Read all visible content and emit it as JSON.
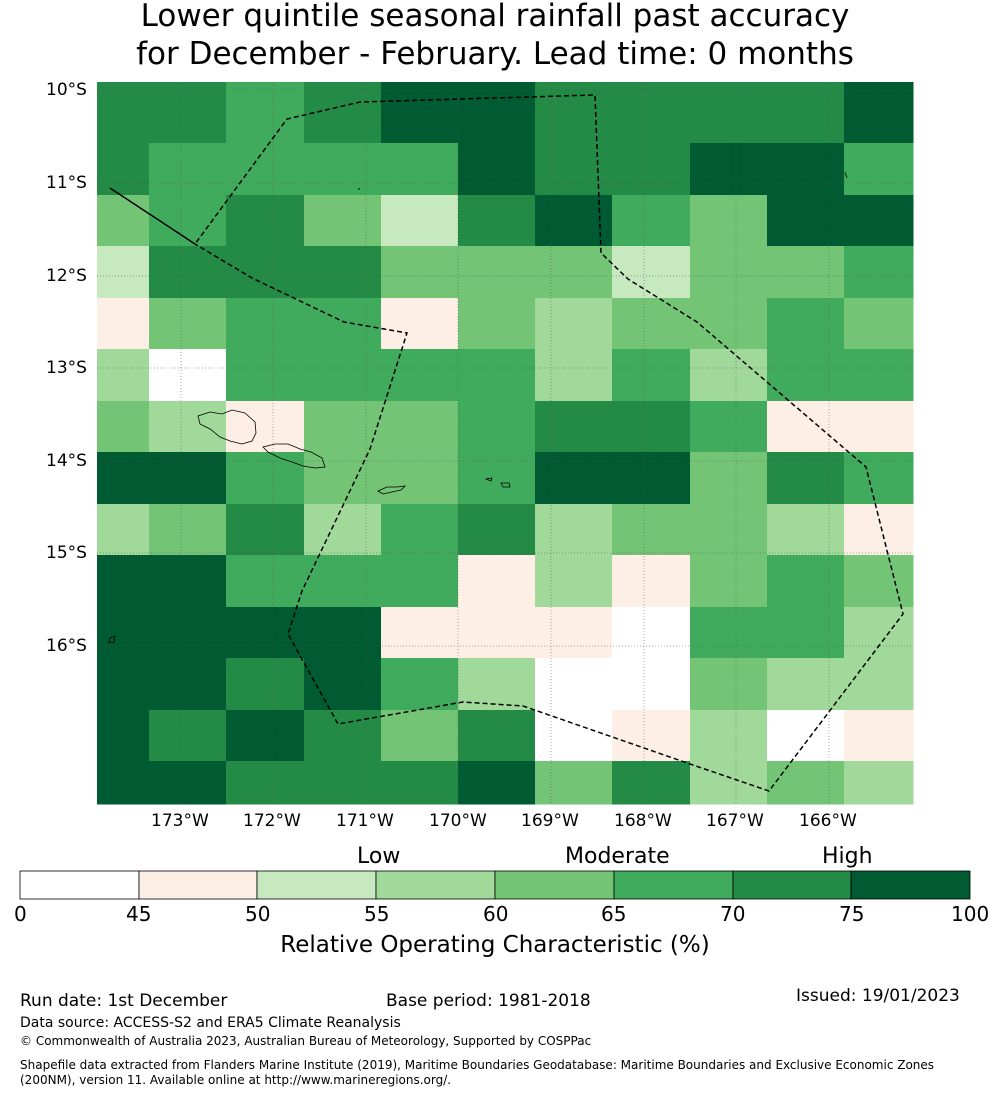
{
  "title": {
    "line1": "Lower quintile seasonal rainfall past accuracy",
    "line2": "for December - February. Lead time: 0 months"
  },
  "map": {
    "lat_labels": [
      "10°S",
      "11°S",
      "12°S",
      "13°S",
      "14°S",
      "15°S",
      "16°S"
    ],
    "lon_labels": [
      "173°W",
      "172°W",
      "171°W",
      "170°W",
      "169°W",
      "168°W",
      "167°W",
      "166°W"
    ],
    "grid_cell_class_rows": [
      [
        6,
        6,
        5,
        6,
        7,
        7,
        6,
        6,
        6,
        6,
        7
      ],
      [
        6,
        5,
        5,
        5,
        5,
        7,
        6,
        6,
        7,
        7,
        5
      ],
      [
        4,
        5,
        6,
        4,
        2,
        6,
        7,
        5,
        4,
        7,
        7
      ],
      [
        2,
        6,
        6,
        6,
        4,
        4,
        4,
        2,
        4,
        4,
        5
      ],
      [
        1,
        4,
        5,
        5,
        1,
        4,
        3,
        4,
        4,
        5,
        4
      ],
      [
        3,
        0,
        5,
        5,
        5,
        5,
        3,
        5,
        3,
        5,
        5
      ],
      [
        4,
        3,
        1,
        4,
        4,
        5,
        6,
        6,
        5,
        1,
        1
      ],
      [
        7,
        7,
        5,
        4,
        4,
        5,
        7,
        7,
        4,
        6,
        5
      ],
      [
        3,
        4,
        6,
        3,
        5,
        6,
        3,
        4,
        4,
        3,
        1
      ],
      [
        7,
        7,
        5,
        5,
        5,
        1,
        3,
        1,
        4,
        5,
        4
      ],
      [
        7,
        7,
        7,
        7,
        1,
        1,
        1,
        0,
        5,
        5,
        3
      ],
      [
        7,
        7,
        6,
        7,
        5,
        3,
        -1,
        0,
        4,
        3,
        3
      ],
      [
        7,
        6,
        7,
        6,
        4,
        6,
        -1,
        1,
        3,
        0,
        1
      ],
      [
        7,
        7,
        6,
        6,
        6,
        7,
        4,
        6,
        3,
        4,
        3
      ]
    ]
  },
  "colorbar": {
    "categories": [
      "Low",
      "Moderate",
      "High"
    ],
    "ticks": [
      "0",
      "45",
      "50",
      "55",
      "60",
      "65",
      "70",
      "75",
      "100"
    ],
    "colors": [
      "#ffffff",
      "#fdeee6",
      "#c7e9c0",
      "#a1d99b",
      "#74c476",
      "#41ab5d",
      "#238b45",
      "#005a32"
    ],
    "title": "Relative Operating Characteristic (%)"
  },
  "footer": {
    "run_date": "Run date: 1st December",
    "base_period": "Base period: 1981-2018",
    "issued": "Issued: 19/01/2023",
    "data_source": "Data source: ACCESS-S2 and ERA5 Climate Reanalysis",
    "copyright": "© Commonwealth of Australia 2023, Australian Bureau of Meteorology, Supported by COSPPac",
    "shapefile_line1": "Shapefile data extracted from Flanders Marine Institute (2019), Maritime Boundaries Geodatabase: Maritime Boundaries and Exclusive Economic Zones",
    "shapefile_line2": "(200NM), version 11. Available online at http://www.marineregions.org/."
  }
}
